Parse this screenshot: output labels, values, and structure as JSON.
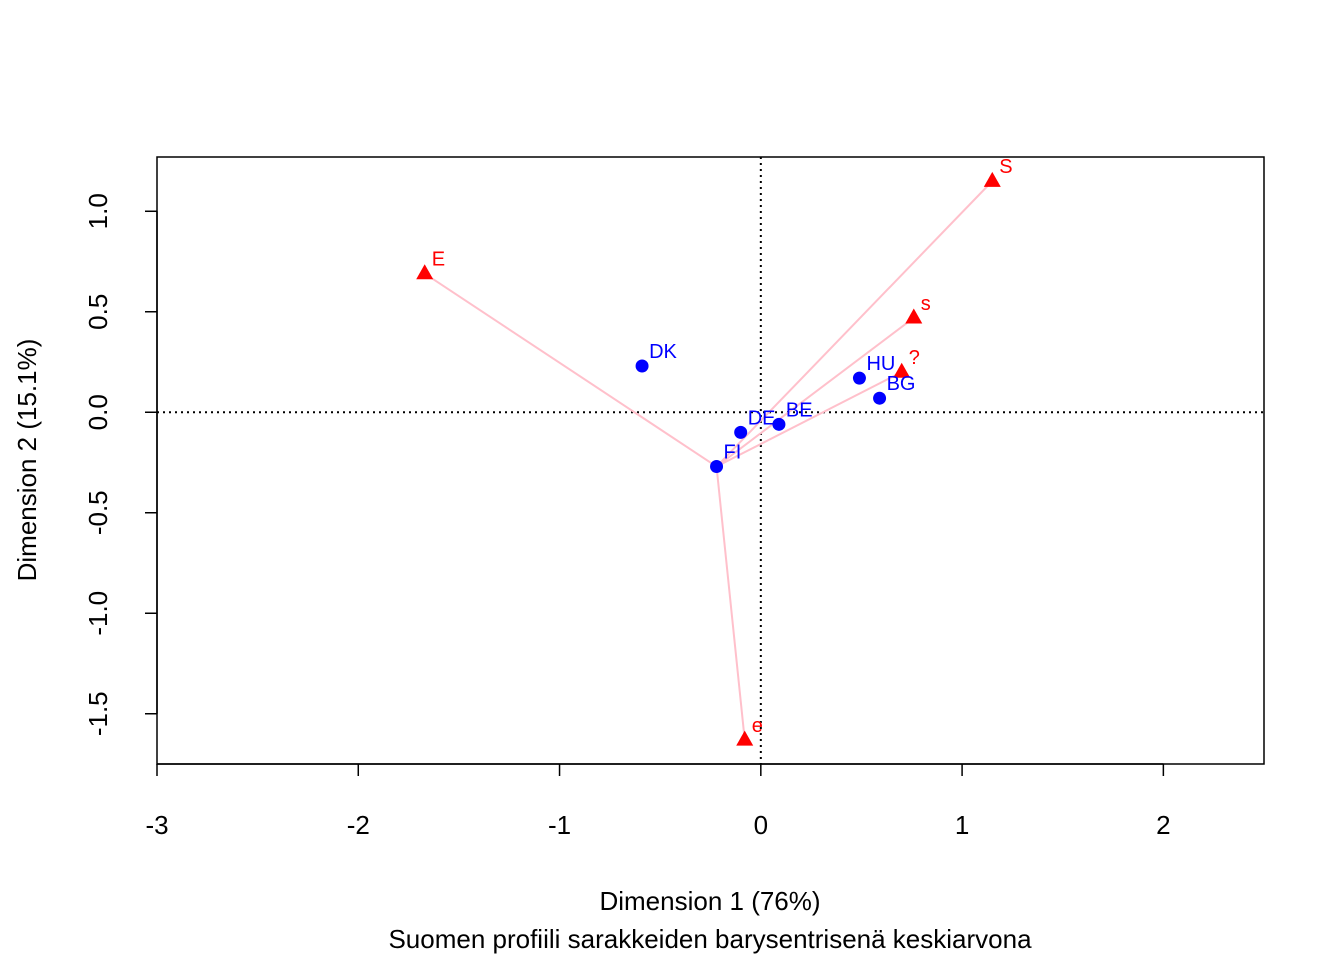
{
  "chart_data": {
    "type": "scatter",
    "xlabel": "Dimension 1 (76%)",
    "ylabel": "Dimension 2 (15.1%)",
    "subtitle": "Suomen profiili sarakkeiden barysentrisenä keskiarvona",
    "xlim": [
      -3,
      2.5
    ],
    "ylim": [
      -1.75,
      1.27
    ],
    "x_ticks": [
      -3,
      -2,
      -1,
      0,
      1,
      2
    ],
    "x_tick_labels": [
      "-3",
      "-2",
      "-1",
      "0",
      "1",
      "2"
    ],
    "y_ticks": [
      1.0,
      0.5,
      0.0,
      -0.5,
      -1.0,
      -1.5
    ],
    "y_tick_labels": [
      "1.0",
      "0.5",
      "0.0",
      "-0.5",
      "-1.0",
      "-1.5"
    ],
    "reference_lines": {
      "x": 0,
      "y": 0,
      "style": "dotted"
    },
    "series": [
      {
        "marker": "circle",
        "color": "#0000ff",
        "points": [
          {
            "label": "DK",
            "x": -0.59,
            "y": 0.23
          },
          {
            "label": "DE",
            "x": -0.1,
            "y": -0.1
          },
          {
            "label": "BE",
            "x": 0.09,
            "y": -0.06
          },
          {
            "label": "FI",
            "x": -0.22,
            "y": -0.27
          },
          {
            "label": "HU",
            "x": 0.49,
            "y": 0.17
          },
          {
            "label": "BG",
            "x": 0.59,
            "y": 0.07
          }
        ]
      },
      {
        "marker": "triangle",
        "color": "#ff0000",
        "points": [
          {
            "label": "E",
            "x": -1.67,
            "y": 0.69
          },
          {
            "label": "S",
            "x": 1.15,
            "y": 1.15
          },
          {
            "label": "s",
            "x": 0.76,
            "y": 0.47
          },
          {
            "label": "?",
            "x": 0.7,
            "y": 0.2
          },
          {
            "label": "e",
            "x": -0.08,
            "y": -1.63
          }
        ]
      }
    ],
    "connectors": {
      "color": "#ffc0cb",
      "from": "FI",
      "to": [
        "E",
        "S",
        "s",
        "?",
        "e"
      ]
    }
  }
}
